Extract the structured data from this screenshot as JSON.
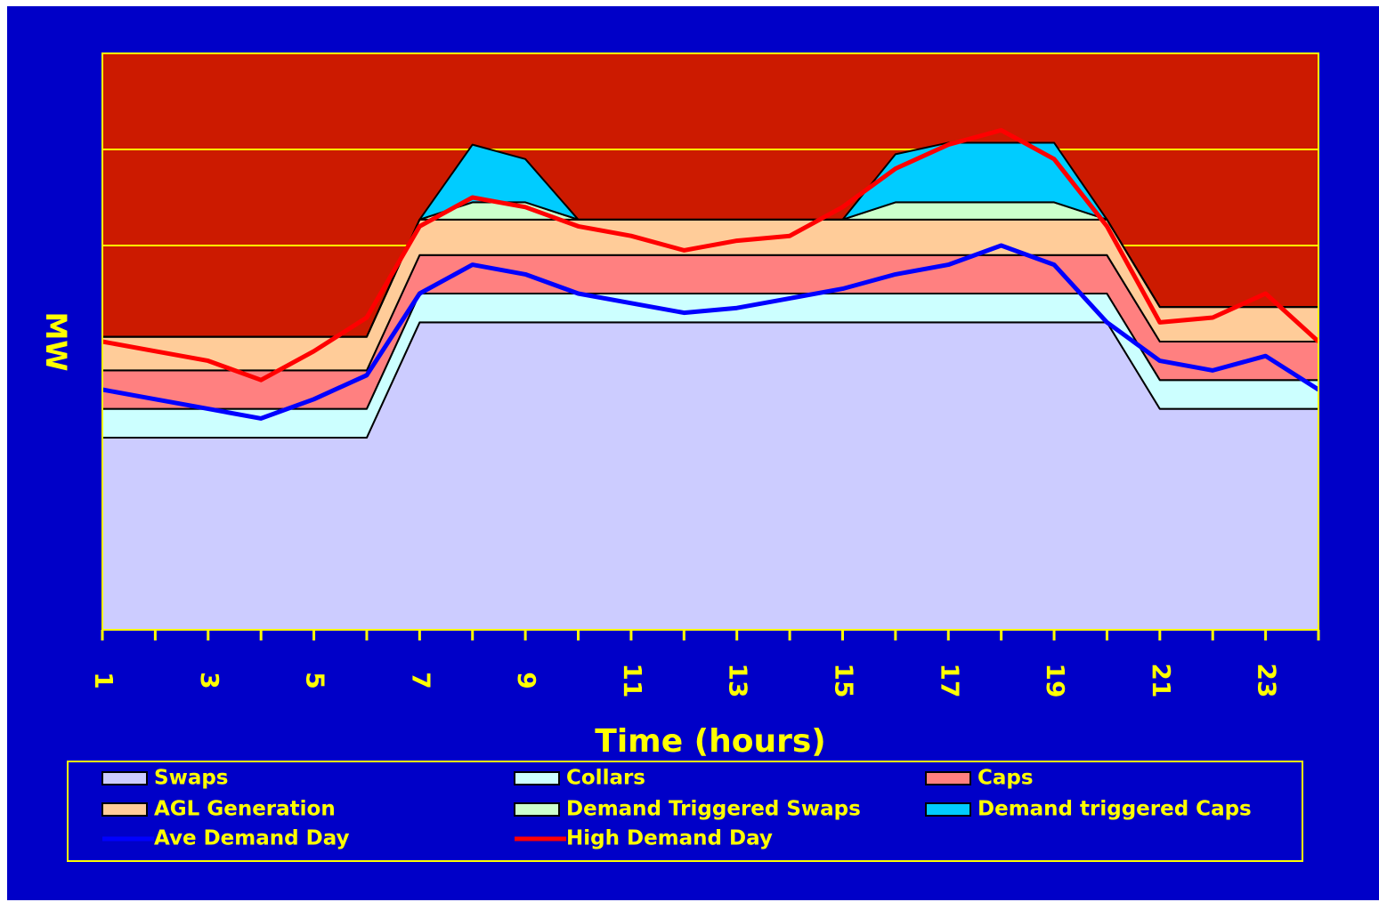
{
  "chart_data": {
    "type": "area",
    "xlabel": "Time (hours)",
    "ylabel": "MW",
    "x": [
      1,
      2,
      3,
      4,
      5,
      6,
      7,
      8,
      9,
      10,
      11,
      12,
      13,
      14,
      15,
      16,
      17,
      18,
      19,
      20,
      21,
      22,
      23,
      24
    ],
    "tick_labels": [
      "1",
      "3",
      "5",
      "7",
      "9",
      "11",
      "13",
      "15",
      "17",
      "19",
      "21",
      "23"
    ],
    "ylim": [
      0,
      6
    ],
    "grid": "horizontal",
    "stacked_series": [
      {
        "name": "Swaps",
        "color": "#ccccff",
        "values": [
          2.0,
          2.0,
          2.0,
          2.0,
          2.0,
          2.0,
          3.2,
          3.2,
          3.2,
          3.2,
          3.2,
          3.2,
          3.2,
          3.2,
          3.2,
          3.2,
          3.2,
          3.2,
          3.2,
          3.2,
          2.3,
          2.3,
          2.3,
          2.3
        ]
      },
      {
        "name": "Collars",
        "color": "#ccffff",
        "values": [
          0.3,
          0.3,
          0.3,
          0.3,
          0.3,
          0.3,
          0.3,
          0.3,
          0.3,
          0.3,
          0.3,
          0.3,
          0.3,
          0.3,
          0.3,
          0.3,
          0.3,
          0.3,
          0.3,
          0.3,
          0.3,
          0.3,
          0.3,
          0.3
        ]
      },
      {
        "name": "Caps",
        "color": "#ff8080",
        "values": [
          0.4,
          0.4,
          0.4,
          0.4,
          0.4,
          0.4,
          0.4,
          0.4,
          0.4,
          0.4,
          0.4,
          0.4,
          0.4,
          0.4,
          0.4,
          0.4,
          0.4,
          0.4,
          0.4,
          0.4,
          0.4,
          0.4,
          0.4,
          0.4
        ]
      },
      {
        "name": "AGL Generation",
        "color": "#ffcc99",
        "values": [
          0.35,
          0.35,
          0.35,
          0.35,
          0.35,
          0.35,
          0.37,
          0.37,
          0.37,
          0.37,
          0.37,
          0.37,
          0.37,
          0.37,
          0.37,
          0.37,
          0.37,
          0.37,
          0.37,
          0.37,
          0.36,
          0.36,
          0.36,
          0.36
        ]
      },
      {
        "name": "Demand Triggered Swaps",
        "color": "#ccffcc",
        "values": [
          0,
          0,
          0,
          0,
          0,
          0,
          0,
          0.18,
          0.18,
          0,
          0,
          0,
          0,
          0,
          0,
          0.18,
          0.18,
          0.18,
          0.18,
          0,
          0,
          0,
          0,
          0
        ]
      },
      {
        "name": "Demand triggered Caps",
        "color": "#00ccff",
        "values": [
          0,
          0,
          0,
          0,
          0,
          0,
          0,
          0.6,
          0.45,
          0,
          0,
          0,
          0,
          0,
          0,
          0.5,
          0.62,
          0.62,
          0.62,
          0,
          0,
          0,
          0,
          0
        ]
      }
    ],
    "line_series": [
      {
        "name": "Ave Demand Day",
        "color": "#0000ff",
        "values": [
          2.5,
          2.4,
          2.3,
          2.2,
          2.4,
          2.65,
          3.5,
          3.8,
          3.7,
          3.5,
          3.4,
          3.3,
          3.35,
          3.45,
          3.55,
          3.7,
          3.8,
          4.0,
          3.8,
          3.2,
          2.8,
          2.7,
          2.85,
          2.5
        ]
      },
      {
        "name": "High Demand Day",
        "color": "#ff0000",
        "values": [
          3.0,
          2.9,
          2.8,
          2.6,
          2.9,
          3.25,
          4.2,
          4.5,
          4.4,
          4.2,
          4.1,
          3.95,
          4.05,
          4.1,
          4.4,
          4.8,
          5.05,
          5.2,
          4.9,
          4.2,
          3.2,
          3.25,
          3.5,
          3.0
        ]
      }
    ],
    "legend_position": "bottom",
    "colors": {
      "background": "#0000c8",
      "plot_background": "#cc1a00",
      "text": "#ffff00",
      "grid": "#ffff00"
    }
  },
  "legend": {
    "items": [
      {
        "label": "Swaps",
        "kind": "area",
        "color": "#ccccff"
      },
      {
        "label": "Collars",
        "kind": "area",
        "color": "#ccffff"
      },
      {
        "label": "Caps",
        "kind": "area",
        "color": "#ff8080"
      },
      {
        "label": "AGL Generation",
        "kind": "area",
        "color": "#ffcc99"
      },
      {
        "label": "Demand Triggered Swaps",
        "kind": "area",
        "color": "#ccffcc"
      },
      {
        "label": "Demand triggered Caps",
        "kind": "area",
        "color": "#00ccff"
      },
      {
        "label": "Ave Demand Day",
        "kind": "line",
        "color": "#0000ff"
      },
      {
        "label": "High Demand Day",
        "kind": "line",
        "color": "#ff0000"
      }
    ]
  }
}
